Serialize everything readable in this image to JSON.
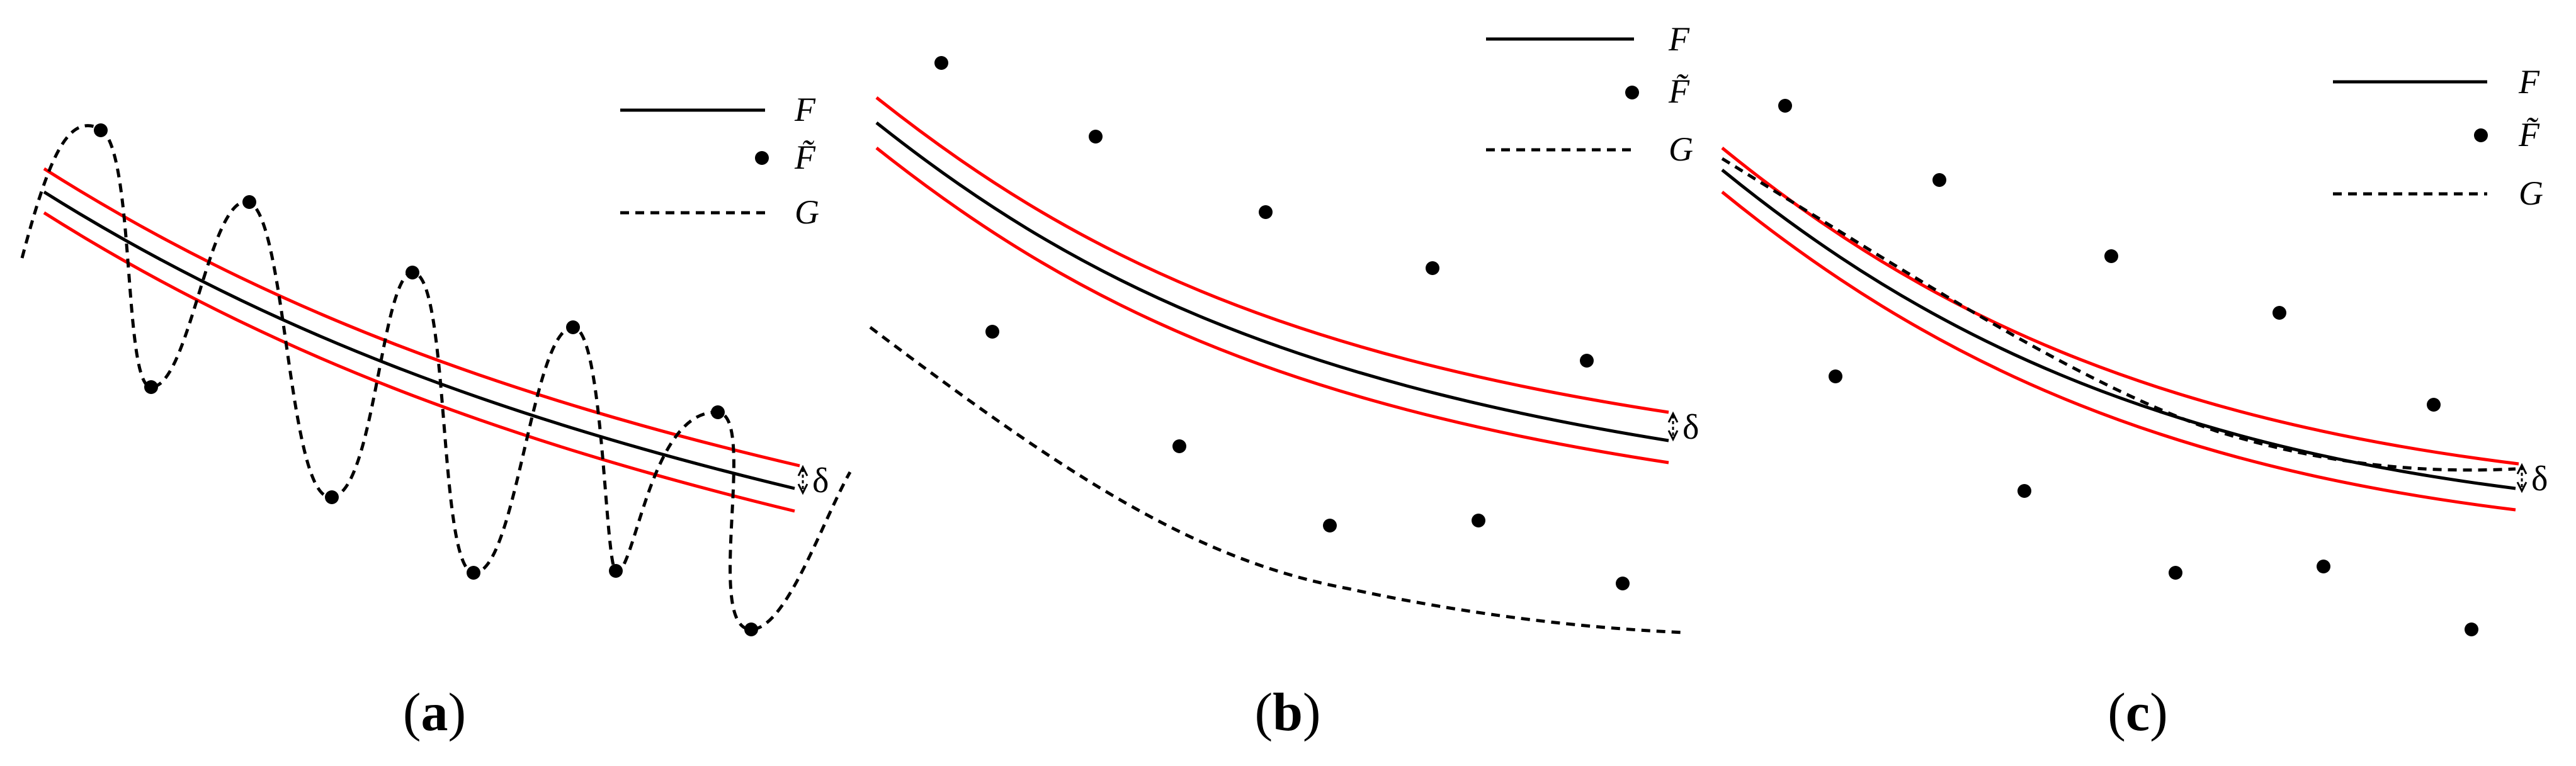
{
  "panels": [
    {
      "id": "a",
      "caption": {
        "open": "(",
        "letter": "a",
        "close": ")"
      },
      "legend": [
        {
          "label": "F",
          "marker": "solid-line"
        },
        {
          "label": "F̃",
          "marker": "dot"
        },
        {
          "label": "G",
          "marker": "dashed-line"
        }
      ],
      "delta_label": "δ"
    },
    {
      "id": "b",
      "caption": {
        "open": "(",
        "letter": "b",
        "close": ")"
      },
      "legend": [
        {
          "label": "F",
          "marker": "solid-line"
        },
        {
          "label": "F̃",
          "marker": "dot"
        },
        {
          "label": "G",
          "marker": "dashed-line"
        }
      ],
      "delta_label": "δ"
    },
    {
      "id": "c",
      "caption": {
        "open": "(",
        "letter": "c",
        "close": ")"
      },
      "legend": [
        {
          "label": "F",
          "marker": "solid-line"
        },
        {
          "label": "F̃",
          "marker": "dot"
        },
        {
          "label": "G",
          "marker": "dashed-line"
        }
      ],
      "delta_label": "δ"
    }
  ],
  "colors": {
    "band": "#ff0000",
    "curve": "#000000"
  }
}
